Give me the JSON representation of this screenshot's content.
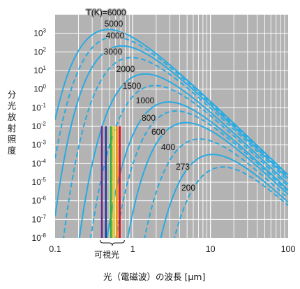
{
  "chart_data": {
    "type": "line",
    "ylabel": "分光放射照度",
    "xlabel": "光（電磁波）の波長 [μm]",
    "x_scale": "log",
    "y_scale": "log",
    "xlim": [
      0.1,
      100
    ],
    "ylim": [
      1e-08,
      10000
    ],
    "x_ticks": [
      "0.1",
      "1",
      "10",
      "100"
    ],
    "y_ticks": [
      {
        "base": "10",
        "exp": "3"
      },
      {
        "base": "10",
        "exp": "2"
      },
      {
        "base": "10",
        "exp": "1"
      },
      {
        "base": "10",
        "exp": "0"
      },
      {
        "base": "10",
        "exp": "-1"
      },
      {
        "base": "10",
        "exp": "-2"
      },
      {
        "base": "10",
        "exp": "-3"
      },
      {
        "base": "10",
        "exp": "-4"
      },
      {
        "base": "10",
        "exp": "-5"
      },
      {
        "base": "10",
        "exp": "-6"
      },
      {
        "base": "10",
        "exp": "-7"
      },
      {
        "base": "10",
        "exp": "-8"
      }
    ],
    "grid": true,
    "curve_color": "#29abe2",
    "background_color": "#b3b3b3",
    "series": [
      {
        "name": "T(K)=6000",
        "temperature": 6000,
        "style": "solid"
      },
      {
        "name": "5000",
        "temperature": 5000,
        "style": "dashed"
      },
      {
        "name": "4000",
        "temperature": 4000,
        "style": "solid"
      },
      {
        "name": "3000",
        "temperature": 3000,
        "style": "dashed"
      },
      {
        "name": "2000",
        "temperature": 2000,
        "style": "solid"
      },
      {
        "name": "1500",
        "temperature": 1500,
        "style": "dashed"
      },
      {
        "name": "1000",
        "temperature": 1000,
        "style": "solid"
      },
      {
        "name": "800",
        "temperature": 800,
        "style": "dashed"
      },
      {
        "name": "600",
        "temperature": 600,
        "style": "solid"
      },
      {
        "name": "400",
        "temperature": 400,
        "style": "dashed"
      },
      {
        "name": "273",
        "temperature": 273,
        "style": "solid"
      },
      {
        "name": "200",
        "temperature": 200,
        "style": "dashed"
      }
    ],
    "visible_band": {
      "label": "可視光",
      "range_um": [
        0.38,
        0.78
      ],
      "top_y": 0.01,
      "bars": [
        {
          "x": 0.4,
          "color": "#6a2c91"
        },
        {
          "x": 0.45,
          "color": "#2b3a9b"
        },
        {
          "x": 0.52,
          "color": "#3aaa35"
        },
        {
          "x": 0.57,
          "color": "#f2d600"
        },
        {
          "x": 0.62,
          "color": "#f39200"
        },
        {
          "x": 0.68,
          "color": "#e30613"
        }
      ]
    }
  }
}
